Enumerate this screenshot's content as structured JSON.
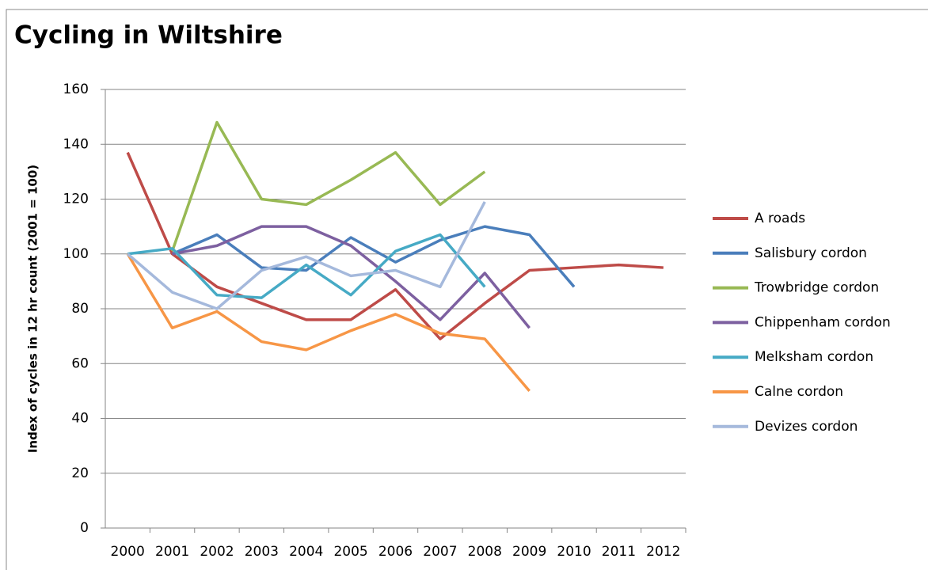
{
  "chart_data": {
    "type": "line",
    "title": "Cycling in Wiltshire",
    "y_label": "Index of cycles  in 12 hr count  (2001 = 100)",
    "categories": [
      "2000",
      "2001",
      "2002",
      "2003",
      "2004",
      "2005",
      "2006",
      "2007",
      "2008",
      "2009",
      "2010",
      "2011",
      "2012"
    ],
    "ylim": [
      0,
      160
    ],
    "yticks": [
      0,
      20,
      40,
      60,
      80,
      100,
      120,
      140,
      160
    ],
    "grid": true,
    "legend": "right",
    "series": [
      {
        "name": "A roads",
        "color": "#be4b48",
        "values": [
          137,
          100,
          88,
          82,
          76,
          76,
          87,
          69,
          82,
          94,
          95,
          96,
          95
        ]
      },
      {
        "name": "Salisbury cordon",
        "color": "#4a7ebb",
        "values": [
          null,
          100,
          107,
          95,
          94,
          106,
          97,
          105,
          110,
          107,
          88,
          null,
          null
        ]
      },
      {
        "name": "Trowbridge cordon",
        "color": "#98b954",
        "values": [
          null,
          101,
          148,
          120,
          118,
          127,
          137,
          118,
          130,
          null,
          null,
          null,
          null
        ]
      },
      {
        "name": "Chippenham cordon",
        "color": "#7d60a0",
        "values": [
          null,
          100,
          103,
          110,
          110,
          103,
          90,
          76,
          93,
          73,
          null,
          null,
          null
        ]
      },
      {
        "name": "Melksham cordon",
        "color": "#46aac5",
        "values": [
          100,
          102,
          85,
          84,
          96,
          85,
          101,
          107,
          88,
          null,
          null,
          null,
          null
        ]
      },
      {
        "name": "Calne cordon",
        "color": "#f79646",
        "values": [
          100,
          73,
          79,
          68,
          65,
          72,
          78,
          71,
          69,
          50,
          null,
          null,
          null
        ]
      },
      {
        "name": "Devizes cordon",
        "color": "#a5b9dc",
        "values": [
          100,
          86,
          80,
          94,
          99,
          92,
          94,
          88,
          119,
          null,
          null,
          null,
          null
        ]
      }
    ]
  }
}
